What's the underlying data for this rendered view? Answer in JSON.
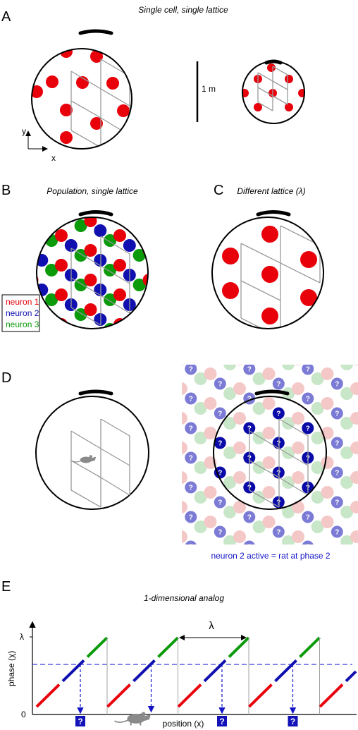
{
  "panels": {
    "A": {
      "label": "A",
      "title": "Single cell, single lattice",
      "scale_label": "1 m",
      "axis_y": "y",
      "axis_x": "x"
    },
    "B": {
      "label": "B",
      "title": "Population, single lattice"
    },
    "C": {
      "label": "C",
      "title": "Different lattice (λ)"
    },
    "D": {
      "label": "D",
      "caption": "neuron 2 active = rat at phase 2",
      "marker": "?"
    },
    "E": {
      "label": "E",
      "title": "1-dimensional analog",
      "lambda": "λ",
      "ylabel": "phase (χ)",
      "ytick_top": "λ",
      "ytick_bottom": "0",
      "xlabel": "position (x)",
      "marker": "?"
    }
  },
  "legend": [
    {
      "label": "neuron 1",
      "color": "#e8000b"
    },
    {
      "label": "neuron 2",
      "color": "#1010b0"
    },
    {
      "label": "neuron 3",
      "color": "#0a9a0a"
    }
  ],
  "colors": {
    "neuron1": "#e8000b",
    "neuron2": "#1010b0",
    "neuron3": "#0a9a0a",
    "grid": "#9a9a9a",
    "dashed": "#3a3ad8"
  },
  "icons": {
    "rat": "rat-icon"
  }
}
